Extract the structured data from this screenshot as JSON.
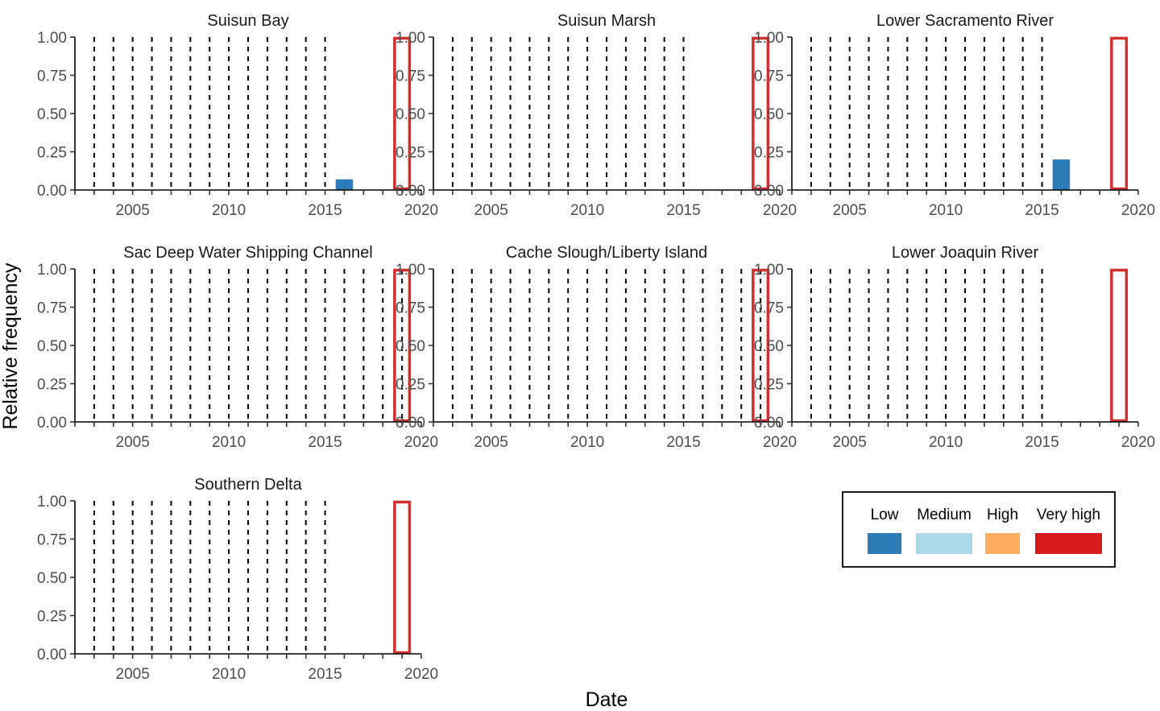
{
  "chart_data": {
    "type": "bar",
    "xlabel": "Date",
    "ylabel": "Relative frequency",
    "xlim": [
      2002,
      2020
    ],
    "ylim": [
      0,
      1
    ],
    "x_ticks": [
      2005,
      2010,
      2015,
      2020
    ],
    "y_ticks": [
      0,
      0.25,
      0.5,
      0.75,
      1
    ],
    "y_tick_labels": [
      "0.00",
      "0.25",
      "0.50",
      "0.75",
      "1.00"
    ],
    "dashed_vlines": {
      "Suisun Bay": [
        2003,
        2004,
        2005,
        2006,
        2007,
        2008,
        2009,
        2010,
        2011,
        2012,
        2013,
        2014,
        2015
      ],
      "Suisun Marsh": [
        2003,
        2004,
        2005,
        2006,
        2007,
        2008,
        2009,
        2010,
        2011,
        2012,
        2013,
        2014,
        2015
      ],
      "Lower Sacramento River": [
        2003,
        2004,
        2005,
        2006,
        2007,
        2008,
        2009,
        2010,
        2011,
        2012,
        2013,
        2014,
        2015
      ],
      "Sac Deep Water Shipping Channel": [
        2003,
        2004,
        2005,
        2006,
        2007,
        2008,
        2009,
        2010,
        2011,
        2012,
        2013,
        2014,
        2015,
        2016,
        2017,
        2018,
        2019
      ],
      "Cache Slough/Liberty Island": [
        2003,
        2004,
        2005,
        2006,
        2007,
        2008,
        2009,
        2010,
        2011,
        2012,
        2013,
        2014,
        2015,
        2016,
        2017,
        2018,
        2019
      ],
      "Lower Joaquin River": [
        2003,
        2004,
        2005,
        2006,
        2007,
        2008,
        2009,
        2010,
        2011,
        2012,
        2013,
        2014,
        2015
      ],
      "Southern Delta": [
        2003,
        2004,
        2005,
        2006,
        2007,
        2008,
        2009,
        2010,
        2011,
        2012,
        2013,
        2014,
        2015
      ]
    },
    "highlight_year": 2019,
    "panels": [
      {
        "title": "Suisun Bay",
        "bars": [
          {
            "year": 2016,
            "category": "Low",
            "value": 0.07
          }
        ]
      },
      {
        "title": "Suisun Marsh",
        "bars": []
      },
      {
        "title": "Lower Sacramento River",
        "bars": [
          {
            "year": 2016,
            "category": "Low",
            "value": 0.2
          }
        ]
      },
      {
        "title": "Sac Deep Water Shipping Channel",
        "bars": []
      },
      {
        "title": "Cache Slough/Liberty Island",
        "bars": []
      },
      {
        "title": "Lower Joaquin River",
        "bars": []
      },
      {
        "title": "Southern Delta",
        "bars": []
      }
    ],
    "legend": {
      "position": "bottom-right",
      "items": [
        {
          "label": "Low",
          "color": "#2c7bb6"
        },
        {
          "label": "Medium",
          "color": "#abd9e9"
        },
        {
          "label": "High",
          "color": "#fdae61"
        },
        {
          "label": "Very high",
          "color": "#d7191c"
        }
      ]
    },
    "highlight_color": "#d03030"
  }
}
